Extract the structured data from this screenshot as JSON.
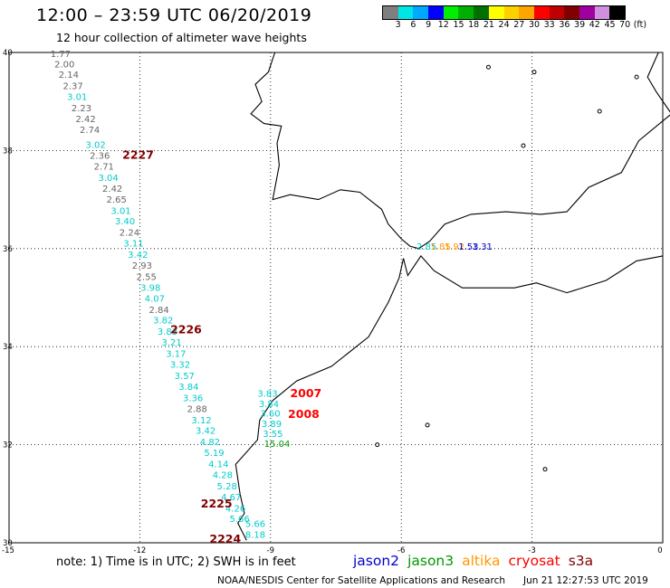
{
  "header": {
    "title": "12:00 – 23:59 UTC 06/20/2019",
    "subtitle": "12 hour collection of altimeter wave heights"
  },
  "colorbar": {
    "colors": [
      "#7f7f7f",
      "#00e5e5",
      "#00a8ff",
      "#0000ff",
      "#00ee00",
      "#00b000",
      "#007000",
      "#ffff00",
      "#ffd000",
      "#ffa500",
      "#ff0000",
      "#c00000",
      "#800000",
      "#a000a0",
      "#d090e0",
      "#000000"
    ],
    "ticks": [
      "3",
      "6",
      "9",
      "12",
      "15",
      "18",
      "21",
      "24",
      "27",
      "30",
      "33",
      "36",
      "39",
      "42",
      "45",
      "70",
      "(ft)"
    ]
  },
  "axes": {
    "lat_labels": [
      "40",
      "38",
      "36",
      "34",
      "32",
      "30"
    ],
    "lon_labels": [
      "-15",
      "-12",
      "-9",
      "-6",
      "-3",
      "0"
    ]
  },
  "colors": {
    "jason2": "#0000cc",
    "jason3": "#009900",
    "altika": "#ff9900",
    "cryosat": "#ff0000",
    "s3a": "#800000",
    "gray": "#666666",
    "cyan": "#00cccc"
  },
  "tracks": [
    {
      "sat": "s3a",
      "time": "2227",
      "lat": 37.83
    },
    {
      "sat": "s3a",
      "time": "2226",
      "lat": 34.27
    },
    {
      "sat": "s3a",
      "time": "2225",
      "lat": 30.72
    },
    {
      "sat": "s3a",
      "time": "2224",
      "lat": 30.0
    },
    {
      "sat": "cryosat",
      "time": "2007",
      "lat": 32.97
    },
    {
      "sat": "cryosat",
      "time": "2008",
      "lat": 32.55
    }
  ],
  "track_labels": [
    "2227",
    "2226",
    "2225",
    "2224",
    "2007",
    "2008"
  ],
  "s3a_pass": [
    {
      "v": "1.77",
      "c": "gray",
      "lat": 39.91
    },
    {
      "v": "2.00",
      "c": "gray",
      "lat": 39.7
    },
    {
      "v": "2.14",
      "c": "gray",
      "lat": 39.48
    },
    {
      "v": "2.37",
      "c": "gray",
      "lat": 39.25
    },
    {
      "v": "3.01",
      "c": "cyan",
      "lat": 39.03
    },
    {
      "v": "2.23",
      "c": "gray",
      "lat": 38.8
    },
    {
      "v": "2.42",
      "c": "gray",
      "lat": 38.58
    },
    {
      "v": "2.74",
      "c": "gray",
      "lat": 38.36
    },
    {
      "v": "3.02",
      "c": "cyan",
      "lat": 38.05
    },
    {
      "v": "2.36",
      "c": "gray",
      "lat": 37.83
    },
    {
      "v": "2.71",
      "c": "gray",
      "lat": 37.61
    },
    {
      "v": "3.04",
      "c": "cyan",
      "lat": 37.38
    },
    {
      "v": "2.42",
      "c": "gray",
      "lat": 37.16
    },
    {
      "v": "2.65",
      "c": "gray",
      "lat": 36.94
    },
    {
      "v": "3.01",
      "c": "cyan",
      "lat": 36.71
    },
    {
      "v": "3.40",
      "c": "cyan",
      "lat": 36.49
    },
    {
      "v": "2.24",
      "c": "gray",
      "lat": 36.26
    },
    {
      "v": "3.11",
      "c": "cyan",
      "lat": 36.04
    },
    {
      "v": "3.42",
      "c": "cyan",
      "lat": 35.81
    },
    {
      "v": "2.93",
      "c": "gray",
      "lat": 35.59
    },
    {
      "v": "2.55",
      "c": "gray",
      "lat": 35.36
    },
    {
      "v": "3.98",
      "c": "cyan",
      "lat": 35.14
    },
    {
      "v": "4.07",
      "c": "cyan",
      "lat": 34.92
    },
    {
      "v": "2.84",
      "c": "gray",
      "lat": 34.69
    },
    {
      "v": "3.82",
      "c": "cyan",
      "lat": 34.47
    },
    {
      "v": "3.83",
      "c": "cyan",
      "lat": 34.24
    },
    {
      "v": "3.21",
      "c": "cyan",
      "lat": 34.02
    },
    {
      "v": "3.17",
      "c": "cyan",
      "lat": 33.79
    },
    {
      "v": "3.32",
      "c": "cyan",
      "lat": 33.57
    },
    {
      "v": "3.57",
      "c": "cyan",
      "lat": 33.34
    },
    {
      "v": "3.84",
      "c": "cyan",
      "lat": 33.12
    },
    {
      "v": "3.36",
      "c": "cyan",
      "lat": 32.89
    },
    {
      "v": "2.88",
      "c": "gray",
      "lat": 32.67
    },
    {
      "v": "3.12",
      "c": "cyan",
      "lat": 32.44
    },
    {
      "v": "3.42",
      "c": "cyan",
      "lat": 32.22
    },
    {
      "v": "4.82",
      "c": "cyan",
      "lat": 31.99
    },
    {
      "v": "5.19",
      "c": "cyan",
      "lat": 31.77
    },
    {
      "v": "4.14",
      "c": "cyan",
      "lat": 31.54
    },
    {
      "v": "4.28",
      "c": "cyan",
      "lat": 31.32
    },
    {
      "v": "5.28",
      "c": "cyan",
      "lat": 31.09
    },
    {
      "v": "4.67",
      "c": "cyan",
      "lat": 30.87
    },
    {
      "v": "4.26",
      "c": "cyan",
      "lat": 30.64
    },
    {
      "v": "5.66",
      "c": "cyan",
      "lat": 30.42
    }
  ],
  "cryosat_pass": [
    {
      "v": "3.83",
      "c": "cyan",
      "lat": 32.98
    },
    {
      "v": "3.84",
      "c": "cyan",
      "lat": 32.77
    },
    {
      "v": "3.60",
      "c": "cyan",
      "lat": 32.57
    },
    {
      "v": "3.89",
      "c": "cyan",
      "lat": 32.36
    },
    {
      "v": "3.55",
      "c": "cyan",
      "lat": 32.16
    },
    {
      "v": "15.04",
      "c": "jason3",
      "lat": 31.96
    }
  ],
  "coast_pass": [
    {
      "v": "5.66",
      "c": "cyan",
      "lat": 30.32
    },
    {
      "v": "8.18",
      "c": "cyan",
      "lat": 30.1
    }
  ],
  "gibraltar": [
    {
      "v": "2.85",
      "c": "cyan"
    },
    {
      "v": "1.85",
      "c": "altika"
    },
    {
      "v": "1.92",
      "c": "altika"
    },
    {
      "v": "1.53",
      "c": "jason2"
    },
    {
      "v": "1.31",
      "c": "jason2"
    }
  ],
  "footer": {
    "note": "note:  1) Time is in UTC;  2) SWH is in feet",
    "legend": [
      {
        "name": "jason2",
        "color": "#0000cc"
      },
      {
        "name": "jason3",
        "color": "#009900"
      },
      {
        "name": "altika",
        "color": "#ff9900"
      },
      {
        "name": "cryosat",
        "color": "#ff0000"
      },
      {
        "name": "s3a",
        "color": "#800000"
      }
    ],
    "credit": "NOAA/NESDIS Center for Satellite Applications and Research",
    "timestamp": "Jun 21 12:27:53 UTC 2019"
  }
}
